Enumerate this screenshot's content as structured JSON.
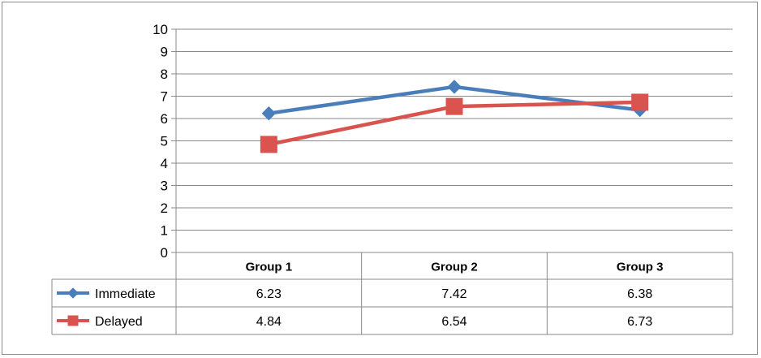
{
  "chart_data": {
    "type": "line",
    "categories": [
      "Group 1",
      "Group 2",
      "Group 3"
    ],
    "series": [
      {
        "name": "Immediate",
        "values": [
          6.23,
          7.42,
          6.38
        ],
        "color": "#4a7ebb",
        "marker": "diamond"
      },
      {
        "name": "Delayed",
        "values": [
          4.84,
          6.54,
          6.73
        ],
        "color": "#d9534f",
        "marker": "square"
      }
    ],
    "ylim": [
      0,
      10
    ],
    "yticks": [
      "0",
      "1",
      "2",
      "3",
      "4",
      "5",
      "6",
      "7",
      "8",
      "9",
      "10"
    ],
    "table": [
      {
        "series": "Immediate",
        "cells": [
          "6.23",
          "7.42",
          "6.38"
        ]
      },
      {
        "series": "Delayed",
        "cells": [
          "4.84",
          "6.54",
          "6.73"
        ]
      }
    ],
    "grid": true,
    "legend": "data-table"
  }
}
